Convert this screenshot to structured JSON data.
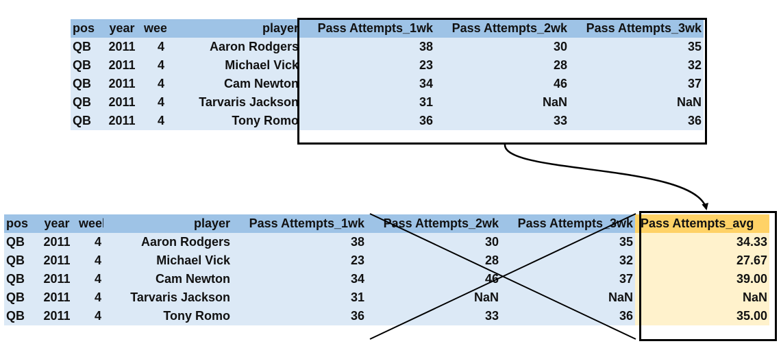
{
  "top_table": {
    "headers": [
      "pos",
      "year",
      "week",
      "player",
      "Pass Attempts_1wk",
      "Pass Attempts_2wk",
      "Pass Attempts_3wk"
    ],
    "rows": [
      [
        "QB",
        "2011",
        "4",
        "Aaron Rodgers",
        "38",
        "30",
        "35"
      ],
      [
        "QB",
        "2011",
        "4",
        "Michael Vick",
        "23",
        "28",
        "32"
      ],
      [
        "QB",
        "2011",
        "4",
        "Cam Newton",
        "34",
        "46",
        "37"
      ],
      [
        "QB",
        "2011",
        "4",
        "Tarvaris Jackson",
        "31",
        "NaN",
        "NaN"
      ],
      [
        "QB",
        "2011",
        "4",
        "Tony Romo",
        "36",
        "33",
        "36"
      ]
    ]
  },
  "bottom_table": {
    "headers": [
      "pos",
      "year",
      "week",
      "player",
      "Pass Attempts_1wk",
      "Pass Attempts_2wk",
      "Pass Attempts_3wk",
      "Pass Attempts_avg"
    ],
    "rows": [
      [
        "QB",
        "2011",
        "4",
        "Aaron Rodgers",
        "38",
        "30",
        "35",
        "34.33"
      ],
      [
        "QB",
        "2011",
        "4",
        "Michael Vick",
        "23",
        "28",
        "32",
        "27.67"
      ],
      [
        "QB",
        "2011",
        "4",
        "Cam Newton",
        "34",
        "46",
        "37",
        "39.00"
      ],
      [
        "QB",
        "2011",
        "4",
        "Tarvaris Jackson",
        "31",
        "NaN",
        "NaN",
        "NaN"
      ],
      [
        "QB",
        "2011",
        "4",
        "Tony Romo",
        "36",
        "33",
        "36",
        "35.00"
      ]
    ]
  },
  "colors": {
    "header_blue": "#9ec3e6",
    "cell_blue": "#dce9f6",
    "avg_header": "#ffd266",
    "avg_cell": "#fff2cc",
    "line": "#000000"
  }
}
